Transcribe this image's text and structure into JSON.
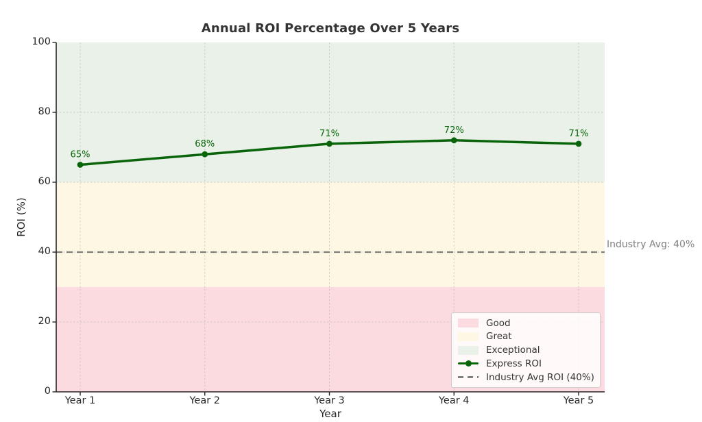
{
  "chart_data": {
    "type": "line",
    "title": "Annual ROI Percentage Over 5 Years",
    "xlabel": "Year",
    "ylabel": "ROI (%)",
    "categories": [
      "Year 1",
      "Year 2",
      "Year 3",
      "Year 4",
      "Year 5"
    ],
    "series": [
      {
        "name": "Express ROI",
        "values": [
          65,
          68,
          71,
          72,
          71
        ],
        "point_labels": [
          "65%",
          "68%",
          "71%",
          "72%",
          "71%"
        ],
        "color": "#0a650a"
      }
    ],
    "ylim": [
      0,
      100
    ],
    "yticks": [
      0,
      20,
      40,
      60,
      80,
      100
    ],
    "grid": true,
    "legend_position": "lower right",
    "bands": [
      {
        "label": "Good",
        "from": 0,
        "to": 30,
        "color": "#fbdbdf"
      },
      {
        "label": "Great",
        "from": 30,
        "to": 60,
        "color": "#fdf7e3"
      },
      {
        "label": "Exceptional",
        "from": 60,
        "to": 100,
        "color": "#e9f1e8"
      }
    ],
    "reference_line": {
      "value": 40,
      "annotation": "Industry Avg: 40%",
      "color": "#7f7f7f"
    },
    "legend": {
      "entries": [
        {
          "label": "Good",
          "type": "patch",
          "color": "#fbdbdf"
        },
        {
          "label": "Great",
          "type": "patch",
          "color": "#fdf7e3"
        },
        {
          "label": "Exceptional",
          "type": "patch",
          "color": "#e9f1e8"
        },
        {
          "label": "Express ROI",
          "type": "line-marker",
          "color": "#0a650a"
        },
        {
          "label": "Industry Avg ROI (40%)",
          "type": "dashed-line",
          "color": "#7f7f7f"
        }
      ]
    },
    "colors": {
      "axis_text": "#262626",
      "title_text": "#333333",
      "grid": "#b0b0b0",
      "spine": "#262626",
      "annotation_text": "#808080"
    }
  }
}
